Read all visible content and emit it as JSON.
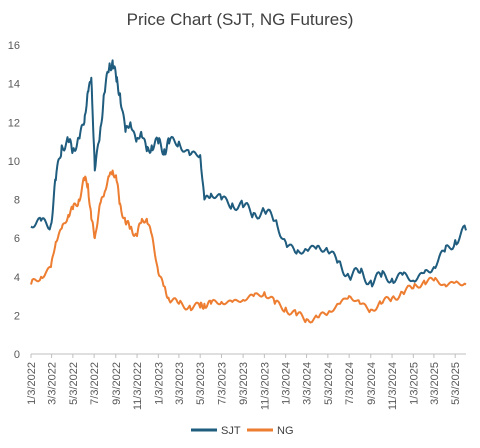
{
  "chart_data": {
    "type": "line",
    "title": "Price Chart (SJT, NG Futures)",
    "xlabel": "",
    "ylabel": "",
    "ylim": [
      0,
      16
    ],
    "y_ticks": [
      0,
      2,
      4,
      6,
      8,
      10,
      12,
      14,
      16
    ],
    "x_ticks": [
      "1/3/2022",
      "3/3/2022",
      "5/3/2022",
      "7/3/2022",
      "9/3/2022",
      "11/3/2022",
      "1/3/2023",
      "3/3/2023",
      "5/3/2023",
      "7/3/2023",
      "9/3/2023",
      "11/3/2023",
      "1/3/2024",
      "3/3/2024",
      "5/3/2024",
      "7/3/2024",
      "9/3/2024",
      "11/3/2024",
      "1/3/2025",
      "3/3/2025",
      "5/3/2025"
    ],
    "grid": false,
    "legend": "bottom",
    "x": [
      "2022-01-03",
      "2022-02-01",
      "2022-03-01",
      "2022-03-15",
      "2022-04-01",
      "2022-04-20",
      "2022-05-03",
      "2022-05-20",
      "2022-06-05",
      "2022-06-15",
      "2022-06-25",
      "2022-07-05",
      "2022-07-20",
      "2022-08-01",
      "2022-08-15",
      "2022-08-25",
      "2022-09-05",
      "2022-09-15",
      "2022-10-01",
      "2022-10-15",
      "2022-11-01",
      "2022-11-15",
      "2022-12-01",
      "2022-12-15",
      "2023-01-03",
      "2023-01-20",
      "2023-02-03",
      "2023-03-03",
      "2023-04-03",
      "2023-05-03",
      "2023-05-15",
      "2023-06-03",
      "2023-07-03",
      "2023-08-03",
      "2023-09-03",
      "2023-10-03",
      "2023-11-03",
      "2023-12-03",
      "2024-01-03",
      "2024-02-03",
      "2024-03-03",
      "2024-04-03",
      "2024-05-03",
      "2024-06-03",
      "2024-07-03",
      "2024-08-03",
      "2024-09-03",
      "2024-10-03",
      "2024-11-03",
      "2024-12-03",
      "2025-01-03",
      "2025-02-03",
      "2025-03-03",
      "2025-04-03",
      "2025-05-03",
      "2025-06-03"
    ],
    "series": [
      {
        "name": "SJT",
        "color": "#1F5C7E",
        "values": [
          6.6,
          6.9,
          6.7,
          9.0,
          10.8,
          11.0,
          10.5,
          11.2,
          12.0,
          13.6,
          14.3,
          9.5,
          11.5,
          13.5,
          14.8,
          15.2,
          14.1,
          13.5,
          11.5,
          12.0,
          11.0,
          11.5,
          10.5,
          10.8,
          10.9,
          10.6,
          10.9,
          11.0,
          10.3,
          10.3,
          8.0,
          8.3,
          8.0,
          7.8,
          7.6,
          7.3,
          7.4,
          6.9,
          5.8,
          5.2,
          5.4,
          5.6,
          5.3,
          4.8,
          4.0,
          4.2,
          3.8,
          4.0,
          3.9,
          4.1,
          3.8,
          4.2,
          4.5,
          5.3,
          5.9,
          6.4
        ]
      },
      {
        "name": "NG",
        "color": "#ED7D31",
        "values": [
          3.6,
          4.0,
          4.5,
          5.8,
          6.5,
          7.2,
          7.5,
          8.0,
          9.0,
          8.8,
          7.0,
          6.0,
          7.8,
          8.3,
          9.2,
          9.5,
          9.0,
          7.8,
          6.8,
          6.5,
          6.2,
          6.8,
          7.0,
          6.2,
          4.2,
          3.5,
          2.8,
          2.6,
          2.5,
          2.4,
          2.6,
          2.6,
          2.7,
          2.7,
          2.8,
          3.0,
          3.2,
          2.6,
          2.4,
          2.0,
          1.8,
          1.9,
          2.1,
          2.6,
          3.0,
          2.6,
          2.3,
          2.6,
          2.9,
          3.2,
          3.4,
          3.8,
          3.8,
          3.6,
          3.7,
          3.6
        ]
      }
    ]
  }
}
